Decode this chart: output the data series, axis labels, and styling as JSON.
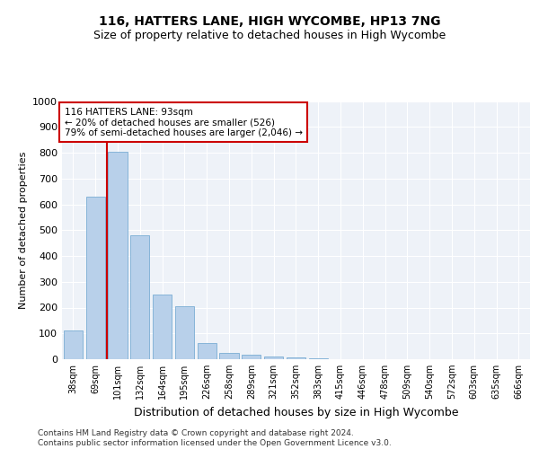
{
  "title": "116, HATTERS LANE, HIGH WYCOMBE, HP13 7NG",
  "subtitle": "Size of property relative to detached houses in High Wycombe",
  "xlabel": "Distribution of detached houses by size in High Wycombe",
  "ylabel": "Number of detached properties",
  "categories": [
    "38sqm",
    "69sqm",
    "101sqm",
    "132sqm",
    "164sqm",
    "195sqm",
    "226sqm",
    "258sqm",
    "289sqm",
    "321sqm",
    "352sqm",
    "383sqm",
    "415sqm",
    "446sqm",
    "478sqm",
    "509sqm",
    "540sqm",
    "572sqm",
    "603sqm",
    "635sqm",
    "666sqm"
  ],
  "values": [
    110,
    630,
    805,
    480,
    250,
    205,
    63,
    25,
    18,
    10,
    8,
    5,
    0,
    0,
    0,
    0,
    0,
    0,
    0,
    0,
    0
  ],
  "bar_color": "#b8d0ea",
  "bar_edge_color": "#7aadd4",
  "property_line_color": "#cc0000",
  "annotation_text": "116 HATTERS LANE: 93sqm\n← 20% of detached houses are smaller (526)\n79% of semi-detached houses are larger (2,046) →",
  "annotation_box_color": "#cc0000",
  "ylim": [
    0,
    1000
  ],
  "yticks": [
    0,
    100,
    200,
    300,
    400,
    500,
    600,
    700,
    800,
    900,
    1000
  ],
  "background_color": "#eef2f8",
  "footer": "Contains HM Land Registry data © Crown copyright and database right 2024.\nContains public sector information licensed under the Open Government Licence v3.0.",
  "title_fontsize": 10,
  "subtitle_fontsize": 9,
  "xlabel_fontsize": 9,
  "ylabel_fontsize": 8
}
